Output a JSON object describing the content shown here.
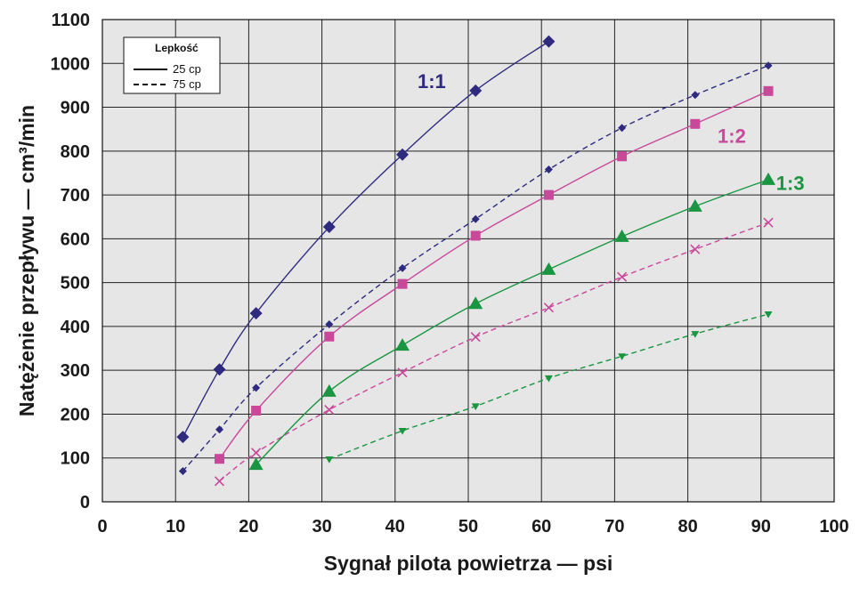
{
  "chart_data": {
    "type": "line",
    "xlabel": "Sygnał pilota powietrza — psi",
    "ylabel": "Natężenie przepływu — cm³/min",
    "xlim": [
      0,
      100
    ],
    "ylim": [
      0,
      1100
    ],
    "xticks": [
      0,
      10,
      20,
      30,
      40,
      50,
      60,
      70,
      80,
      90,
      100
    ],
    "yticks": [
      0,
      100,
      200,
      300,
      400,
      500,
      600,
      700,
      800,
      900,
      1000,
      1100
    ],
    "grid": true,
    "background": "#e6e6e6",
    "legend": {
      "title": "Lepkość",
      "placement": "top-left",
      "entries": [
        {
          "label": "25 cp",
          "style": "solid"
        },
        {
          "label": "75 cp",
          "style": "dashed"
        }
      ]
    },
    "annotations": [
      {
        "text": "1:1",
        "x": 45,
        "y": 960,
        "color": "#2e2a7e"
      },
      {
        "text": "1:2",
        "x": 86,
        "y": 835,
        "color": "#c8489a"
      },
      {
        "text": "1:3",
        "x": 94,
        "y": 728,
        "color": "#1a9642"
      }
    ],
    "series": [
      {
        "ratio": "1:1",
        "viscosity": "25 cp",
        "style": "solid",
        "marker": "diamond",
        "color": "#2e2a7e",
        "x": [
          11,
          16,
          21,
          31,
          41,
          51,
          61
        ],
        "y": [
          148,
          302,
          430,
          627,
          792,
          938,
          1050
        ]
      },
      {
        "ratio": "1:1",
        "viscosity": "75 cp",
        "style": "dashed",
        "marker": "diamond-small",
        "color": "#2e2a7e",
        "x": [
          11,
          16,
          21,
          31,
          41,
          51,
          61,
          71,
          81,
          91
        ],
        "y": [
          70,
          165,
          260,
          405,
          533,
          645,
          758,
          853,
          928,
          995
        ]
      },
      {
        "ratio": "1:2",
        "viscosity": "25 cp",
        "style": "solid",
        "marker": "square",
        "color": "#c8489a",
        "x": [
          16,
          21,
          31,
          41,
          51,
          61,
          71,
          81,
          91
        ],
        "y": [
          98,
          208,
          377,
          497,
          607,
          700,
          788,
          862,
          937
        ]
      },
      {
        "ratio": "1:2",
        "viscosity": "75 cp",
        "style": "dashed",
        "marker": "x",
        "color": "#c8489a",
        "x": [
          16,
          21,
          31,
          41,
          51,
          61,
          71,
          81,
          91
        ],
        "y": [
          47,
          112,
          210,
          295,
          376,
          443,
          513,
          576,
          637
        ]
      },
      {
        "ratio": "1:3",
        "viscosity": "25 cp",
        "style": "solid",
        "marker": "triangle",
        "color": "#1a9642",
        "x": [
          21,
          31,
          41,
          51,
          61,
          71,
          81,
          91
        ],
        "y": [
          85,
          252,
          357,
          452,
          530,
          605,
          674,
          735
        ]
      },
      {
        "ratio": "1:3",
        "viscosity": "75 cp",
        "style": "dashed",
        "marker": "triangle-down",
        "color": "#1a9642",
        "x": [
          31,
          41,
          51,
          61,
          71,
          81,
          91
        ],
        "y": [
          97,
          162,
          218,
          282,
          332,
          383,
          428
        ]
      }
    ]
  }
}
